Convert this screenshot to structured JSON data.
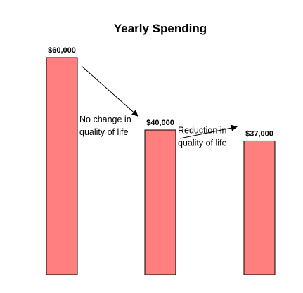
{
  "chart_data": {
    "type": "bar",
    "title": "Yearly Spending",
    "categories": [
      "",
      "",
      ""
    ],
    "values": [
      60000,
      40000,
      37000
    ],
    "data_labels": [
      "$60,000",
      "$40,000",
      "$37,000"
    ],
    "xlabel": "",
    "ylabel": "",
    "ylim": [
      0,
      60000
    ],
    "grid": false,
    "legend": "none",
    "bar_color": "#ff7f7f",
    "bar_outline_color": "#000000",
    "annotations": [
      {
        "from": 0,
        "to": 1,
        "lines": [
          "No change in",
          "quality of life"
        ]
      },
      {
        "from": 1,
        "to": 2,
        "lines": [
          "Reduction in",
          "quality of life"
        ]
      }
    ]
  }
}
